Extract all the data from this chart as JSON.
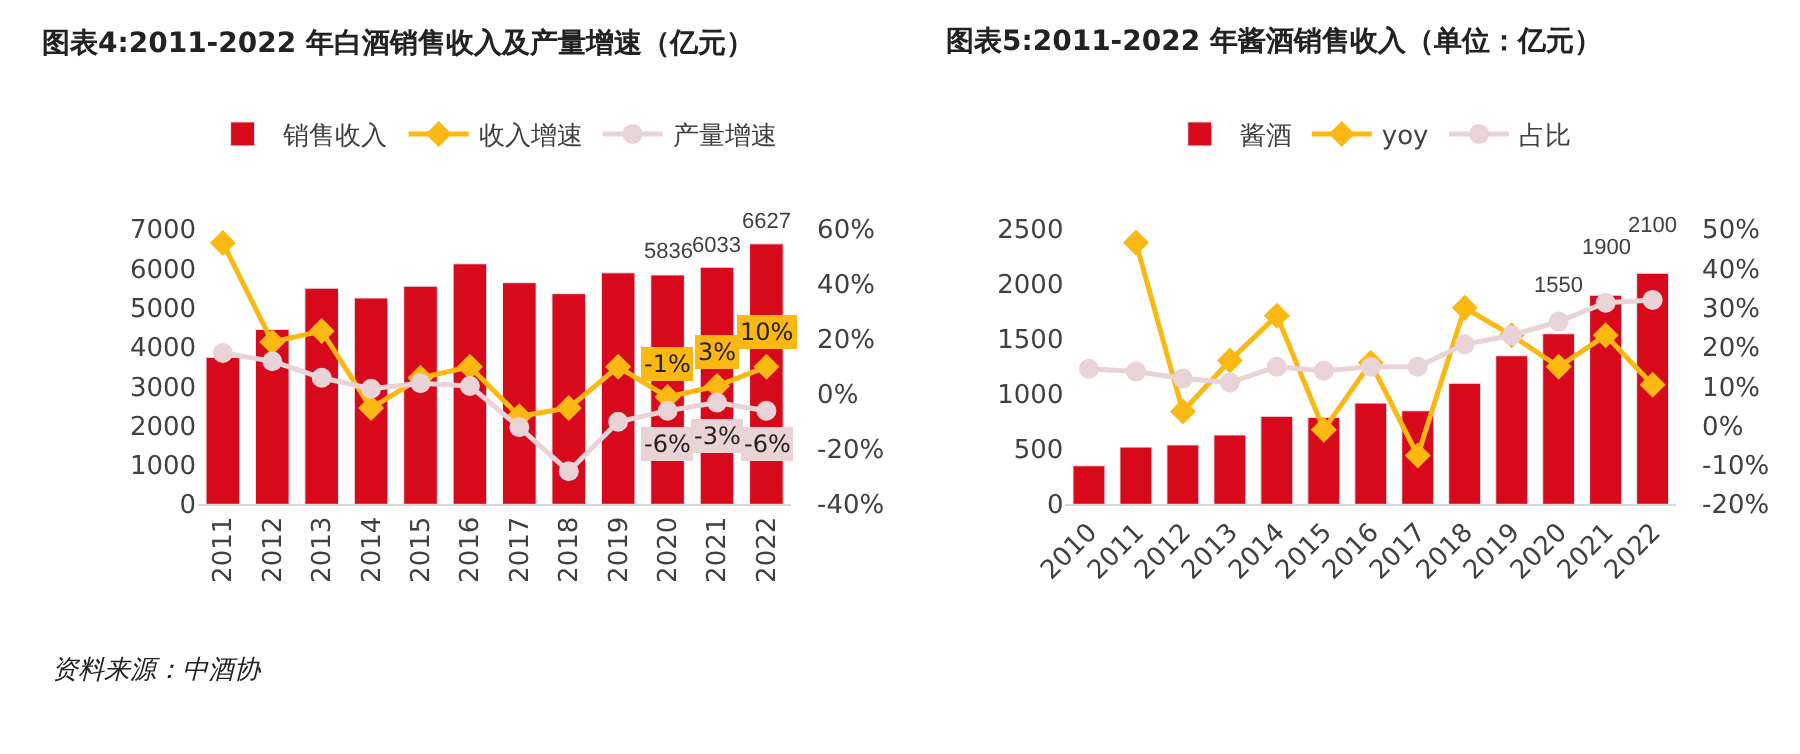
{
  "chart_data": [
    {
      "type": "bar",
      "title": "图表4:2011-2022 年白酒销售收入及产量增速（亿元）",
      "categories": [
        "2011",
        "2012",
        "2013",
        "2014",
        "2015",
        "2016",
        "2017",
        "2018",
        "2019",
        "2020",
        "2021",
        "2022"
      ],
      "series": [
        {
          "name": "销售收入",
          "color": "#d7091b",
          "values": [
            3740,
            4450,
            5500,
            5250,
            5550,
            6120,
            5640,
            5360,
            5890,
            5836,
            6033,
            6627
          ],
          "value_labels": [
            null,
            null,
            null,
            null,
            null,
            null,
            null,
            null,
            null,
            "5836",
            "6033",
            "6627"
          ]
        },
        {
          "name": "收入增速",
          "type": "line",
          "axis": "y2",
          "color": "#fbb812",
          "marker": "diamond",
          "values": [
            55,
            19,
            23,
            -5,
            6,
            10,
            -8,
            -5,
            10,
            -1,
            3,
            10
          ],
          "value_labels": [
            null,
            null,
            null,
            null,
            null,
            null,
            null,
            null,
            null,
            "-1%",
            "3%",
            "10%"
          ]
        },
        {
          "name": "产量增速",
          "type": "line",
          "axis": "y2",
          "color": "#e9d3d6",
          "marker": "circle",
          "values": [
            15,
            12,
            6,
            2,
            4,
            3,
            -12,
            -28,
            -10,
            -6,
            -3,
            -6
          ],
          "value_labels": [
            null,
            null,
            null,
            null,
            null,
            null,
            null,
            null,
            null,
            "-6%",
            "-3%",
            "-6%"
          ]
        }
      ],
      "ylim": [
        0,
        7000
      ],
      "yticks": [
        0,
        1000,
        2000,
        3000,
        4000,
        5000,
        6000,
        7000
      ],
      "y2lim": [
        -40,
        60
      ],
      "y2ticks": [
        {
          "value": -40,
          "label": "-40%"
        },
        {
          "value": -20,
          "label": "-20%"
        },
        {
          "value": 0,
          "label": "0%"
        },
        {
          "value": 20,
          "label": "20%"
        },
        {
          "value": 40,
          "label": "40%"
        },
        {
          "value": 60,
          "label": "60%"
        }
      ],
      "legend": "top",
      "annotations": [
        "资料来源：中酒协"
      ]
    },
    {
      "type": "bar",
      "title": "图表5:2011-2022 年酱酒销售收入（单位：亿元）",
      "categories": [
        "2010",
        "2011",
        "2012",
        "2013",
        "2014",
        "2015",
        "2016",
        "2017",
        "2018",
        "2019",
        "2020",
        "2021",
        "2022"
      ],
      "series": [
        {
          "name": "酱酒",
          "color": "#d7091b",
          "values": [
            350,
            520,
            540,
            630,
            800,
            790,
            920,
            850,
            1100,
            1350,
            1550,
            1900,
            2100
          ],
          "value_labels": [
            null,
            null,
            null,
            null,
            null,
            null,
            null,
            null,
            null,
            null,
            "1550",
            "1900",
            "2100"
          ]
        },
        {
          "name": "yoy",
          "type": "line",
          "axis": "y2",
          "color": "#fbb812",
          "marker": "diamond",
          "values": [
            null,
            46.6,
            3.6,
            16.6,
            28,
            -1,
            16,
            -7.6,
            30,
            23,
            15,
            23,
            10.4
          ]
        },
        {
          "name": "占比",
          "type": "line",
          "axis": "y2",
          "color": "#e9d3d6",
          "marker": "circle",
          "values": [
            14.5,
            13.8,
            12,
            11,
            15,
            14,
            15,
            15,
            20.7,
            23,
            26.5,
            31.3,
            32
          ]
        }
      ],
      "ylim": [
        0,
        2500
      ],
      "yticks": [
        0,
        500,
        1000,
        1500,
        2000,
        2500
      ],
      "y2lim": [
        -20,
        50
      ],
      "y2ticks": [
        {
          "value": -20,
          "label": "-20%"
        },
        {
          "value": -10,
          "label": "-10%"
        },
        {
          "value": 0,
          "label": "0%"
        },
        {
          "value": 10,
          "label": "10%"
        },
        {
          "value": 20,
          "label": "20%"
        },
        {
          "value": 30,
          "label": "30%"
        },
        {
          "value": 40,
          "label": "40%"
        },
        {
          "value": 50,
          "label": "50%"
        }
      ],
      "legend": "top"
    }
  ]
}
